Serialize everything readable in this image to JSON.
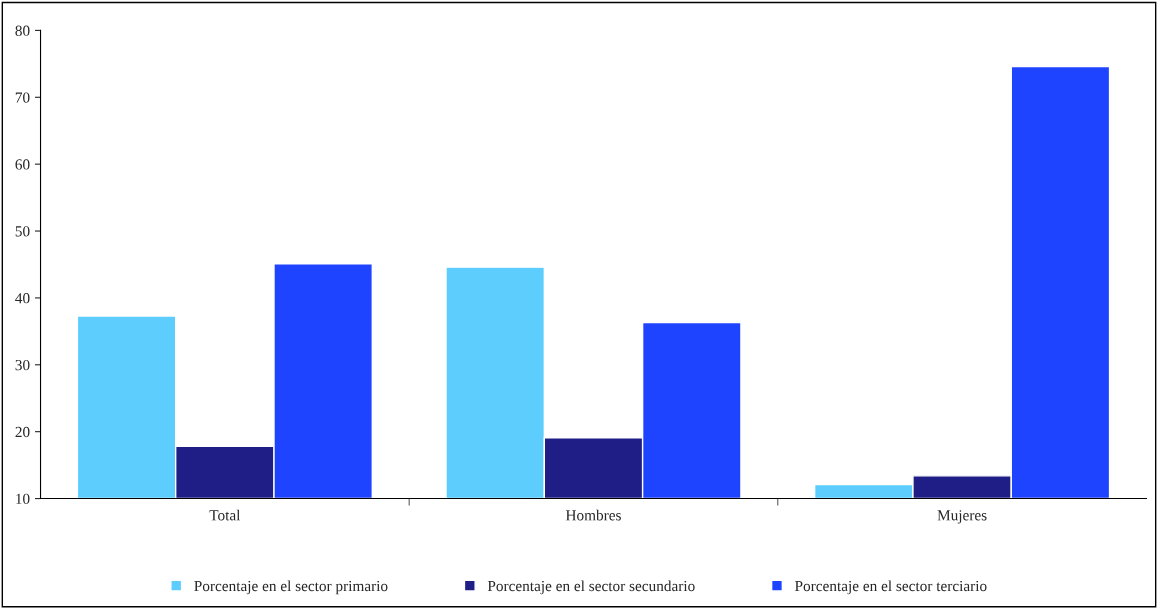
{
  "chart_data": {
    "type": "bar",
    "categories": [
      "Total",
      "Hombres",
      "Mujeres"
    ],
    "series": [
      {
        "name": "Porcentaje en el sector primario",
        "color": "#5ccdfd",
        "values": [
          37.3,
          44.6,
          12.1
        ]
      },
      {
        "name": "Porcentaje en el sector secundario",
        "color": "#1e1e86",
        "values": [
          17.8,
          19.1,
          13.4
        ]
      },
      {
        "name": "Porcentaje en el sector terciario",
        "color": "#1f44ff",
        "values": [
          45.1,
          36.3,
          74.6
        ]
      }
    ],
    "ylim": [
      10,
      80
    ],
    "yticks": [
      10,
      20,
      30,
      40,
      50,
      60,
      70,
      80
    ],
    "grid": false,
    "legend": "bottom"
  }
}
